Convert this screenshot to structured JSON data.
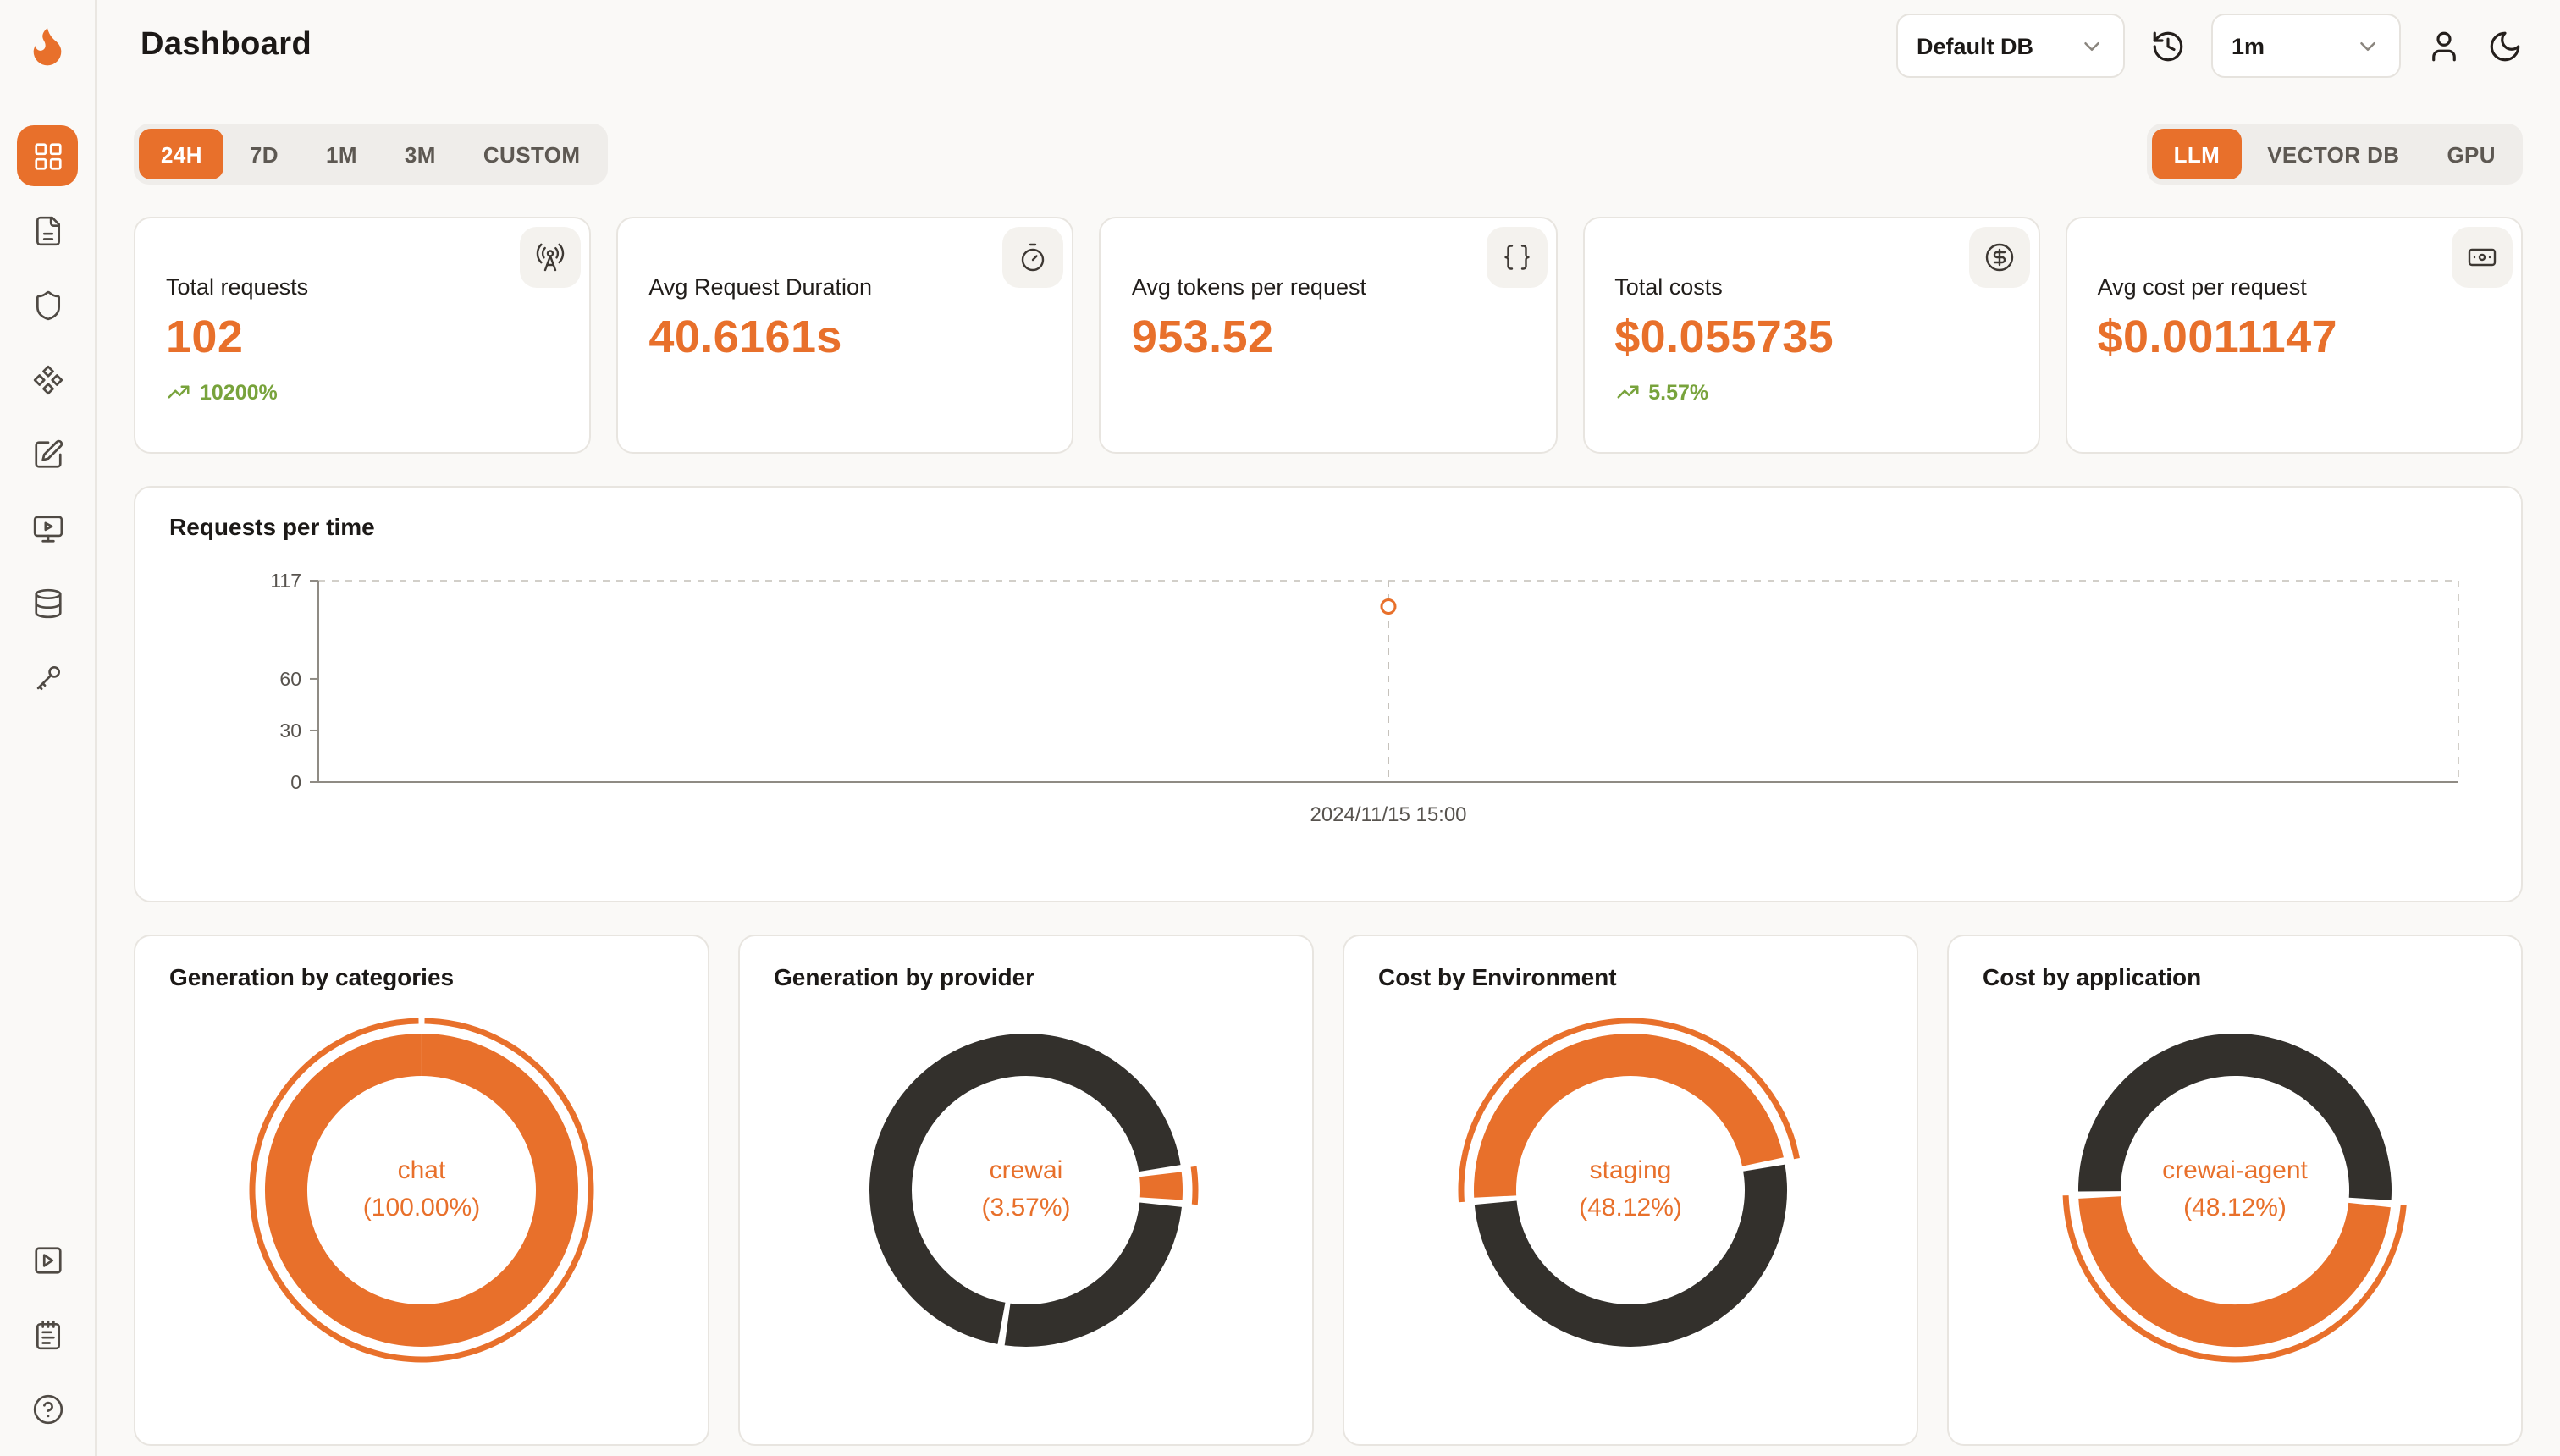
{
  "colors": {
    "accent": "#e8702b",
    "dark_segment": "#33302c",
    "positive": "#78a33c",
    "page_bg": "#faf9f7",
    "card_border": "#e8e5e0"
  },
  "header": {
    "title": "Dashboard",
    "database_select": {
      "value": "Default DB"
    },
    "refresh_interval_select": {
      "value": "1m"
    }
  },
  "sidebar": {
    "icons": [
      "layout-grid",
      "file",
      "shield",
      "component",
      "square-pen",
      "monitor-play",
      "database",
      "key-round"
    ],
    "footer_icons": [
      "square-play",
      "notepad-text",
      "help-circle"
    ],
    "active": "layout-grid"
  },
  "filters": {
    "time_ranges": [
      "24H",
      "7D",
      "1M",
      "3M",
      "CUSTOM"
    ],
    "active_time_range": "24H",
    "data_sources": [
      "LLM",
      "VECTOR DB",
      "GPU"
    ],
    "active_data_source": "LLM"
  },
  "stats": [
    {
      "label": "Total requests",
      "value": "102",
      "delta": "10200%",
      "icon": "radio-tower-icon"
    },
    {
      "label": "Avg Request Duration",
      "value": "40.6161s",
      "icon": "timer-icon"
    },
    {
      "label": "Avg tokens per request",
      "value": "953.52",
      "icon": "braces-icon"
    },
    {
      "label": "Total costs",
      "value": "$0.055735",
      "delta": "5.57%",
      "icon": "circle-dollar-icon"
    },
    {
      "label": "Avg cost per request",
      "value": "$0.0011147",
      "icon": "banknote-icon"
    }
  ],
  "chart_data": [
    {
      "type": "line",
      "title": "Requests per time",
      "x": [
        "2024/11/15 15:00"
      ],
      "series": [
        {
          "name": "requests",
          "values": [
            102
          ]
        }
      ],
      "ylim": [
        0,
        117
      ],
      "yticks": [
        0,
        30,
        60,
        117
      ],
      "grid": "dashed-top-right-border",
      "point_style": "hollow-circle"
    },
    {
      "type": "donut",
      "title": "Generation by categories",
      "center_label": "chat",
      "center_value": "(100.00%)",
      "start_angle": 0,
      "segments": [
        {
          "name": "chat",
          "value": 100.0,
          "color": "#e8702b",
          "highlight": true
        }
      ]
    },
    {
      "type": "donut",
      "title": "Generation by provider",
      "center_label": "crewai",
      "center_value": "(3.57%)",
      "start_angle": 82,
      "segments": [
        {
          "name": "crewai",
          "value": 3.57,
          "color": "#e8702b",
          "highlight": true
        },
        {
          "name": "other",
          "value": 26.2,
          "color": "#33302c"
        },
        {
          "name": "other",
          "value": 70.23,
          "color": "#33302c"
        }
      ]
    },
    {
      "type": "donut",
      "title": "Cost by Environment",
      "center_label": "staging",
      "center_value": "(48.12%)",
      "start_angle": 266,
      "segments": [
        {
          "name": "staging",
          "value": 48.12,
          "color": "#e8702b",
          "highlight": true
        },
        {
          "name": "other",
          "value": 51.88,
          "color": "#33302c"
        }
      ]
    },
    {
      "type": "donut",
      "title": "Cost by application",
      "center_label": "crewai-agent",
      "center_value": "(48.12%)",
      "start_angle": 95,
      "segments": [
        {
          "name": "crewai-agent",
          "value": 48.12,
          "color": "#e8702b",
          "highlight": true
        },
        {
          "name": "other",
          "value": 51.88,
          "color": "#33302c"
        }
      ]
    }
  ]
}
